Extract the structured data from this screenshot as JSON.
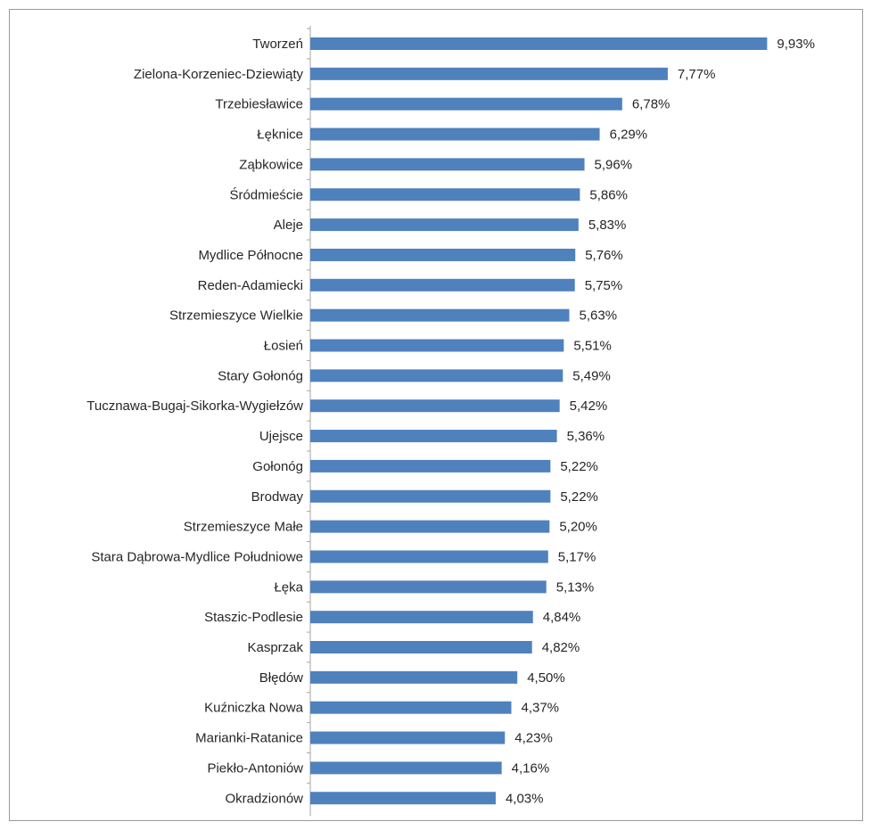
{
  "chart_data": {
    "type": "bar",
    "orientation": "horizontal",
    "title": "",
    "xlabel": "",
    "ylabel": "",
    "grid": false,
    "legend": "none",
    "bar_color": "#4f81bd",
    "axis_color": "#a6a6a6",
    "xlim": [
      0,
      10.5
    ],
    "categories": [
      "Tworzeń",
      "Zielona-Korzeniec-Dziewiąty",
      "Trzebiesławice",
      "Łęknice",
      "Ząbkowice",
      "Śródmieście",
      "Aleje",
      "Mydlice Północne",
      "Reden-Adamiecki",
      "Strzemieszyce Wielkie",
      "Łosień",
      "Stary Gołonóg",
      "Tucznawa-Bugaj-Sikorka-Wygiełzów",
      "Ujejsce",
      "Gołonóg",
      "Brodway",
      "Strzemieszyce Małe",
      "Stara Dąbrowa-Mydlice Południowe",
      "Łęka",
      "Staszic-Podlesie",
      "Kasprzak",
      "Błędów",
      "Kuźniczka Nowa",
      "Marianki-Ratanice",
      "Piekło-Antoniów",
      "Okradzionów"
    ],
    "values": [
      9.93,
      7.77,
      6.78,
      6.29,
      5.96,
      5.86,
      5.83,
      5.76,
      5.75,
      5.63,
      5.51,
      5.49,
      5.42,
      5.36,
      5.22,
      5.22,
      5.2,
      5.17,
      5.13,
      4.84,
      4.82,
      4.5,
      4.37,
      4.23,
      4.16,
      4.03
    ],
    "value_labels": [
      "9,93%",
      "7,77%",
      "6,78%",
      "6,29%",
      "5,96%",
      "5,86%",
      "5,83%",
      "5,76%",
      "5,75%",
      "5,63%",
      "5,51%",
      "5,49%",
      "5,42%",
      "5,36%",
      "5,22%",
      "5,22%",
      "5,20%",
      "5,17%",
      "5,13%",
      "4,84%",
      "4,82%",
      "4,50%",
      "4,37%",
      "4,23%",
      "4,16%",
      "4,03%"
    ]
  }
}
